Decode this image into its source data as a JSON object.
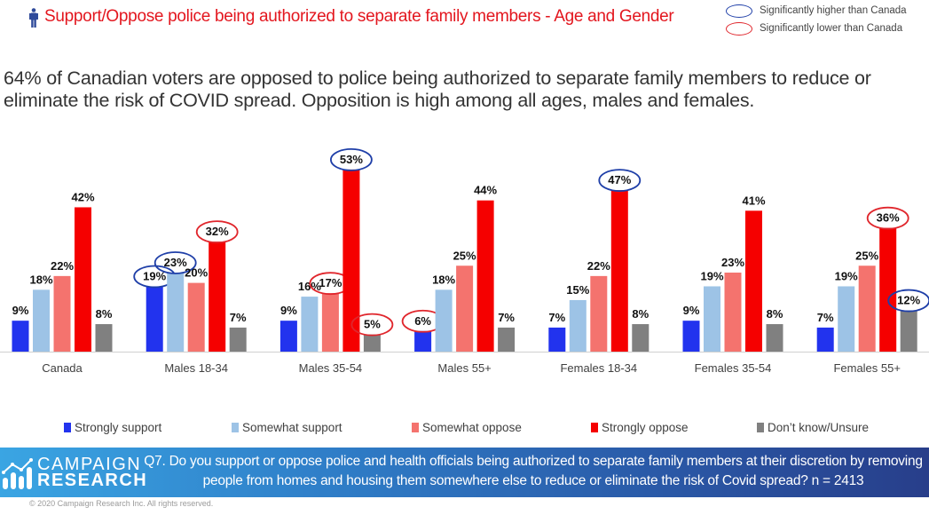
{
  "header": {
    "title": "Support/Oppose police being authorized to separate family members - Age and Gender",
    "icon": "person-icon",
    "title_color": "#e3161e"
  },
  "significance_legend": [
    {
      "label": "Significantly higher than Canada",
      "color": "#1f3fa8"
    },
    {
      "label": "Significantly lower than Canada",
      "color": "#e0262c"
    }
  ],
  "headline": "64% of Canadian voters are opposed to police being authorized to separate family members to reduce or eliminate the risk of COVID spread. Opposition is high among all ages, males and females.",
  "chart_data": {
    "type": "bar",
    "title": "Support/Oppose police being authorized to separate family members - Age and Gender",
    "xlabel": "",
    "ylabel": "",
    "ylim": [
      0,
      55
    ],
    "grid": false,
    "legend_position": "bottom",
    "value_format": "percent",
    "categories": [
      "Canada",
      "Males 18-34",
      "Males 35-54",
      "Males 55+",
      "Females 18-34",
      "Females 35-54",
      "Females 55+"
    ],
    "series": [
      {
        "name": "Strongly support",
        "color": "#2233ee",
        "values": [
          9,
          19,
          9,
          6,
          7,
          9,
          7
        ]
      },
      {
        "name": "Somewhat support",
        "color": "#9dc3e6",
        "values": [
          18,
          23,
          16,
          18,
          15,
          19,
          19
        ]
      },
      {
        "name": "Somewhat oppose",
        "color": "#f4736e",
        "values": [
          22,
          20,
          17,
          25,
          22,
          23,
          25
        ]
      },
      {
        "name": "Strongly oppose",
        "color": "#f50000",
        "values": [
          42,
          32,
          53,
          44,
          47,
          41,
          36
        ]
      },
      {
        "name": "Don’t know/Unsure",
        "color": "#808080",
        "values": [
          8,
          7,
          5,
          7,
          8,
          8,
          12
        ]
      }
    ],
    "annotations": [
      {
        "category": "Males 18-34",
        "series": "Strongly support",
        "significance": "higher"
      },
      {
        "category": "Males 18-34",
        "series": "Somewhat support",
        "significance": "higher"
      },
      {
        "category": "Males 18-34",
        "series": "Strongly oppose",
        "significance": "lower"
      },
      {
        "category": "Males 35-54",
        "series": "Somewhat oppose",
        "significance": "lower"
      },
      {
        "category": "Males 35-54",
        "series": "Strongly oppose",
        "significance": "higher"
      },
      {
        "category": "Males 35-54",
        "series": "Don’t know/Unsure",
        "significance": "lower"
      },
      {
        "category": "Males 55+",
        "series": "Strongly support",
        "significance": "lower"
      },
      {
        "category": "Females 18-34",
        "series": "Strongly oppose",
        "significance": "higher"
      },
      {
        "category": "Females 55+",
        "series": "Strongly oppose",
        "significance": "lower"
      },
      {
        "category": "Females 55+",
        "series": "Don’t know/Unsure",
        "significance": "higher"
      }
    ]
  },
  "footer": {
    "logo_line1": "CAMPAIGN",
    "logo_line2": "RESEARCH",
    "question": "Q7. Do you support or oppose police and health officials being authorized to separate family members at their discretion by removing people from homes and housing them somewhere else to reduce or eliminate the risk of Covid spread? n = 2413",
    "copyright": "© 2020 Campaign Research Inc. All rights reserved."
  }
}
